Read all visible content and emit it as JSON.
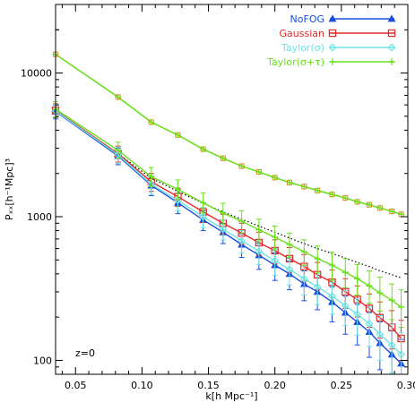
{
  "chart_data": {
    "type": "line",
    "xlabel": "k[h Mpc⁻¹]",
    "ylabel": "Pₓₓ[h⁻¹Mpc]³",
    "annotation": "z=0",
    "xlim": [
      0.035,
      0.3
    ],
    "ylim": [
      80,
      30000
    ],
    "yscale": "log",
    "xticks": [
      0.05,
      0.1,
      0.15,
      0.2,
      0.25,
      0.3
    ],
    "xtick_labels": [
      "0.05",
      "0.10",
      "0.15",
      "0.20",
      "0.25",
      "0.30"
    ],
    "yticks": [
      100,
      1000,
      10000
    ],
    "ytick_labels": [
      "100",
      "1000",
      "10000"
    ],
    "legend_position": "top-right",
    "x": [
      0.035,
      0.082,
      0.107,
      0.127,
      0.146,
      0.161,
      0.175,
      0.188,
      0.2,
      0.211,
      0.222,
      0.232,
      0.243,
      0.253,
      0.262,
      0.271,
      0.279,
      0.288,
      0.295
    ],
    "series": [
      {
        "name": "NoFOG",
        "color": "#1a4fdb",
        "marker": "triangle",
        "values": [
          5400,
          2650,
          1650,
          1250,
          950,
          780,
          640,
          540,
          460,
          400,
          340,
          300,
          255,
          215,
          185,
          158,
          132,
          110,
          95
        ],
        "upper_values": [
          6000,
          3000,
          1900,
          1450,
          1100,
          900,
          760,
          650,
          560,
          490,
          420,
          375,
          325,
          280,
          245,
          215,
          185,
          160,
          140
        ],
        "lower_values": [
          4800,
          2300,
          1400,
          1050,
          800,
          650,
          520,
          430,
          360,
          310,
          260,
          225,
          185,
          152,
          128,
          105,
          86,
          72,
          60
        ]
      },
      {
        "name": "Gaussian",
        "color": "#e02a2a",
        "marker": "square",
        "values": [
          5500,
          2750,
          1750,
          1380,
          1080,
          900,
          770,
          660,
          580,
          510,
          450,
          395,
          350,
          300,
          265,
          230,
          198,
          170,
          142
        ],
        "upper_values": [
          6100,
          3100,
          2000,
          1580,
          1250,
          1040,
          900,
          780,
          690,
          610,
          545,
          480,
          425,
          370,
          330,
          290,
          255,
          222,
          190
        ],
        "lower_values": [
          4900,
          2400,
          1500,
          1180,
          910,
          760,
          640,
          540,
          470,
          410,
          355,
          310,
          275,
          230,
          200,
          170,
          143,
          120,
          100
        ]
      },
      {
        "name": "Taylor(σ)",
        "color": "#6ee4e4",
        "marker": "diamond",
        "values": [
          5450,
          2700,
          1680,
          1300,
          1000,
          820,
          680,
          575,
          495,
          430,
          370,
          325,
          280,
          240,
          210,
          180,
          152,
          128,
          110
        ],
        "upper_values": [
          6050,
          3050,
          1930,
          1500,
          1160,
          950,
          800,
          685,
          600,
          525,
          455,
          405,
          350,
          305,
          270,
          235,
          205,
          178,
          155
        ],
        "lower_values": [
          4850,
          2350,
          1430,
          1100,
          840,
          690,
          560,
          465,
          390,
          335,
          285,
          245,
          210,
          175,
          150,
          125,
          100,
          82,
          68
        ]
      },
      {
        "name": "Taylor(σ+τ)",
        "color": "#6ae01e",
        "marker": "plus",
        "values": [
          5600,
          2900,
          1900,
          1550,
          1250,
          1060,
          930,
          810,
          720,
          640,
          570,
          510,
          460,
          410,
          370,
          330,
          295,
          262,
          235
        ],
        "upper_values": [
          6300,
          3300,
          2200,
          1800,
          1460,
          1240,
          1100,
          960,
          860,
          770,
          690,
          625,
          565,
          510,
          465,
          420,
          380,
          340,
          310
        ],
        "lower_values": [
          4950,
          2550,
          1620,
          1320,
          1060,
          890,
          770,
          670,
          590,
          520,
          460,
          405,
          360,
          320,
          285,
          250,
          220,
          192,
          170
        ]
      }
    ],
    "upper_group": {
      "color": "#6ae01e",
      "marker_color": "#e08a2a",
      "values": [
        13500,
        6800,
        4550,
        3700,
        2950,
        2550,
        2250,
        2050,
        1870,
        1730,
        1620,
        1520,
        1430,
        1350,
        1270,
        1210,
        1150,
        1090,
        1040
      ]
    },
    "reference_line": {
      "style": "dotted",
      "color": "#000000",
      "x": [
        0.082,
        0.107,
        0.127,
        0.146,
        0.161,
        0.175,
        0.188,
        0.2,
        0.211,
        0.222,
        0.232,
        0.243,
        0.253,
        0.262,
        0.271,
        0.279,
        0.288,
        0.295
      ],
      "values": [
        2750,
        1850,
        1500,
        1240,
        1080,
        960,
        860,
        780,
        710,
        650,
        600,
        555,
        515,
        480,
        450,
        420,
        395,
        375
      ]
    }
  }
}
